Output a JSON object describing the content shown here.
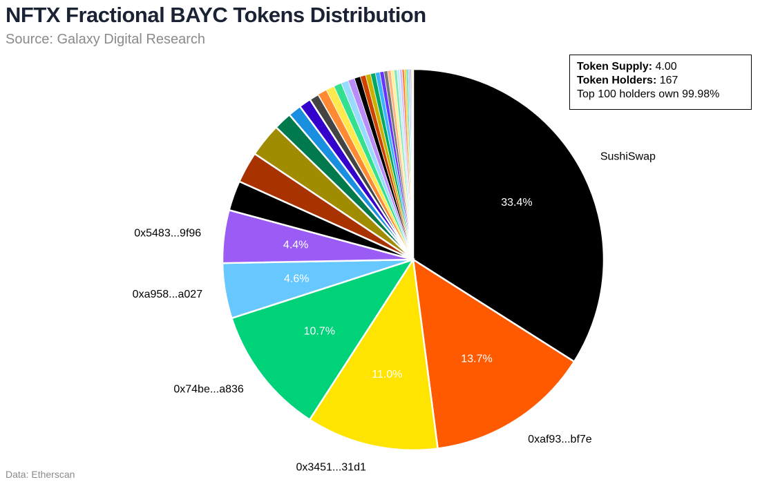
{
  "title": "NFTX Fractional BAYC Tokens Distribution",
  "subtitle": "Source: Galaxy Digital Research",
  "footnote": "Data: Etherscan",
  "info": {
    "supply_label": "Token Supply:",
    "supply_value": "4.00",
    "holders_label": "Token Holders:",
    "holders_value": "167",
    "top_note": "Top 100 holders own 99.98%"
  },
  "chart_data": {
    "type": "pie",
    "start_angle_deg": 0,
    "direction": "clockwise",
    "slices": [
      {
        "label": "SushiSwap",
        "value": 33.4,
        "pct_label": "33.4%",
        "color": "#000000",
        "pct_color": "#ffffff",
        "show_label": true
      },
      {
        "label": "0xaf93...bf7e",
        "value": 13.7,
        "pct_label": "13.7%",
        "color": "#ff5a00",
        "pct_color": "#ffffff",
        "show_label": true
      },
      {
        "label": "0x3451...31d1",
        "value": 11.0,
        "pct_label": "11.0%",
        "color": "#ffe400",
        "pct_color": "#ffffff",
        "show_label": true
      },
      {
        "label": "0x74be...a836",
        "value": 10.7,
        "pct_label": "10.7%",
        "color": "#00d27a",
        "pct_color": "#ffffff",
        "show_label": true
      },
      {
        "label": "0xa958...a027",
        "value": 4.6,
        "pct_label": "4.6%",
        "color": "#66c8ff",
        "pct_color": "#ffffff",
        "show_label": true
      },
      {
        "label": "0x5483...9f96",
        "value": 4.4,
        "pct_label": "4.4%",
        "color": "#9b5cf6",
        "pct_color": "#ffffff",
        "show_label": true
      },
      {
        "label": "",
        "value": 2.5,
        "color": "#000000"
      },
      {
        "label": "",
        "value": 2.6,
        "color": "#a83200"
      },
      {
        "label": "",
        "value": 2.8,
        "color": "#a08c00"
      },
      {
        "label": "",
        "value": 1.5,
        "color": "#007a4d"
      },
      {
        "label": "",
        "value": 1.1,
        "color": "#1a8fe0"
      },
      {
        "label": "",
        "value": 1.0,
        "color": "#3300cc"
      },
      {
        "label": "",
        "value": 0.8,
        "color": "#444444"
      },
      {
        "label": "",
        "value": 0.75,
        "color": "#ff8a33"
      },
      {
        "label": "",
        "value": 0.7,
        "color": "#ffe94d"
      },
      {
        "label": "",
        "value": 0.65,
        "color": "#33e08f"
      },
      {
        "label": "",
        "value": 0.6,
        "color": "#99dbff"
      },
      {
        "label": "",
        "value": 0.55,
        "color": "#b98cf9"
      },
      {
        "label": "",
        "value": 0.5,
        "color": "#000000"
      },
      {
        "label": "",
        "value": 0.45,
        "color": "#cc4400"
      },
      {
        "label": "",
        "value": 0.42,
        "color": "#ccb000"
      },
      {
        "label": "",
        "value": 0.4,
        "color": "#00a866"
      },
      {
        "label": "",
        "value": 0.37,
        "color": "#3db3ff"
      },
      {
        "label": "",
        "value": 0.34,
        "color": "#6633ff"
      },
      {
        "label": "",
        "value": 0.31,
        "color": "#777777"
      },
      {
        "label": "",
        "value": 0.28,
        "color": "#ffb380"
      },
      {
        "label": "",
        "value": 0.26,
        "color": "#fff199"
      },
      {
        "label": "",
        "value": 0.24,
        "color": "#7de8b5"
      },
      {
        "label": "",
        "value": 0.22,
        "color": "#c2e9ff"
      },
      {
        "label": "",
        "value": 0.2,
        "color": "#d5bbfb"
      },
      {
        "label": "",
        "value": 0.18,
        "color": "#ff7a33"
      },
      {
        "label": "",
        "value": 0.16,
        "color": "#e6cf33"
      },
      {
        "label": "",
        "value": 0.14,
        "color": "#4dd9a0"
      },
      {
        "label": "",
        "value": 0.12,
        "color": "#8fd2ff"
      },
      {
        "label": "",
        "value": 0.1,
        "color": "#aa88ee"
      },
      {
        "label": "",
        "value": 0.08,
        "color": "#999999"
      },
      {
        "label": "",
        "value": 0.07,
        "color": "#ffcc99"
      },
      {
        "label": "",
        "value": 0.06,
        "color": "#ffe066"
      }
    ]
  }
}
